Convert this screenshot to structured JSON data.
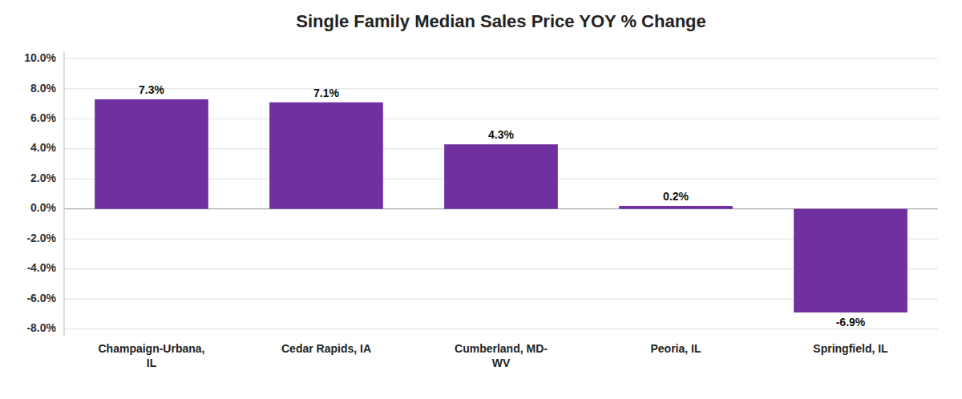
{
  "chart_data": {
    "type": "bar",
    "title": "Single Family Median Sales Price YOY % Change",
    "categories": [
      "Champaign-Urbana,\nIL",
      "Cedar Rapids, IA",
      "Cumberland, MD-\nWV",
      "Peoria, IL",
      "Springfield, IL"
    ],
    "values": [
      7.3,
      7.1,
      4.3,
      0.2,
      -6.9
    ],
    "value_labels": [
      "7.3%",
      "7.1%",
      "4.3%",
      "0.2%",
      "-6.9%"
    ],
    "color": "#7030A0",
    "ylim": [
      -8.5,
      10.5
    ],
    "yticks": [
      {
        "value": -8.0,
        "label": "-8.0%"
      },
      {
        "value": -6.0,
        "label": "-6.0%"
      },
      {
        "value": -4.0,
        "label": "-4.0%"
      },
      {
        "value": -2.0,
        "label": "-2.0%"
      },
      {
        "value": 0.0,
        "label": "0.0%"
      },
      {
        "value": 2.0,
        "label": "2.0%"
      },
      {
        "value": 4.0,
        "label": "4.0%"
      },
      {
        "value": 6.0,
        "label": "6.0%"
      },
      {
        "value": 8.0,
        "label": "8.0%"
      },
      {
        "value": 10.0,
        "label": "10.0%"
      }
    ],
    "grid": true,
    "data_labels": true
  }
}
